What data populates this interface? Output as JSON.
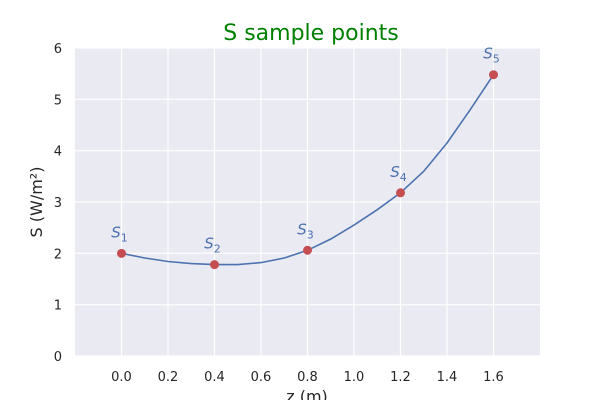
{
  "chart_data": {
    "type": "line",
    "title": "S sample points",
    "xlabel": "z (m)",
    "ylabel": "S (W/m²)",
    "xlim": [
      -0.2,
      1.8
    ],
    "ylim": [
      0,
      6
    ],
    "x_ticks": [
      "0.0",
      "0.2",
      "0.4",
      "0.6",
      "0.8",
      "1.0",
      "1.2",
      "1.4",
      "1.6"
    ],
    "y_ticks": [
      "0",
      "1",
      "2",
      "3",
      "4",
      "5",
      "6"
    ],
    "grid": true,
    "series": [
      {
        "type": "line",
        "x": [
          0.0,
          0.1,
          0.2,
          0.3,
          0.4,
          0.5,
          0.6,
          0.7,
          0.8,
          0.9,
          1.0,
          1.1,
          1.2,
          1.3,
          1.4,
          1.5,
          1.6
        ],
        "y": [
          2.0,
          1.91,
          1.84,
          1.8,
          1.78,
          1.78,
          1.82,
          1.91,
          2.06,
          2.28,
          2.55,
          2.85,
          3.18,
          3.6,
          4.15,
          4.8,
          5.48
        ]
      },
      {
        "type": "scatter",
        "x": [
          0.0,
          0.4,
          0.8,
          1.2,
          1.6
        ],
        "y": [
          2.0,
          1.78,
          2.06,
          3.18,
          5.48
        ],
        "labels": [
          {
            "base": "S",
            "sub": "1"
          },
          {
            "base": "S",
            "sub": "2"
          },
          {
            "base": "S",
            "sub": "3"
          },
          {
            "base": "S",
            "sub": "4"
          },
          {
            "base": "S",
            "sub": "5"
          }
        ]
      }
    ],
    "colors": {
      "plot_background": "#eaeaf2",
      "grid": "#ffffff",
      "line": "#4c72b0",
      "marker": "#c44e52",
      "point_label": "#4c72b0",
      "title": "#008000"
    }
  }
}
